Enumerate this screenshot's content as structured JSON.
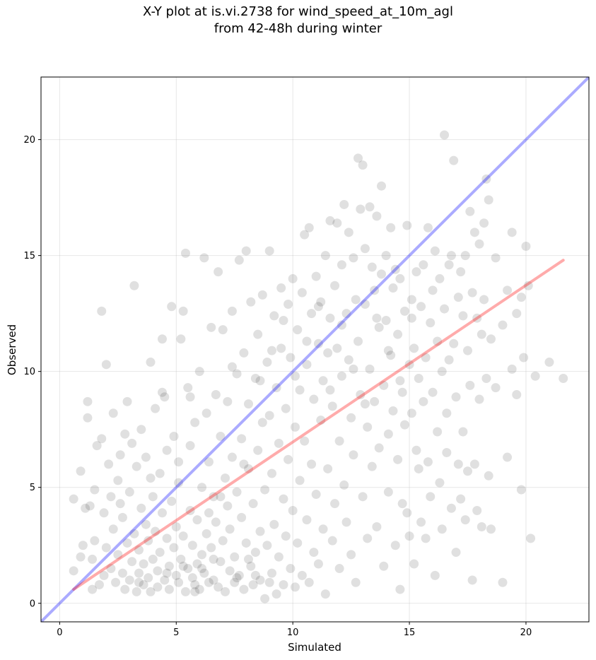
{
  "title": {
    "line1": "X-Y plot at is.vi.2738 for wind_speed_at_10m_agl",
    "line2": "from 42-48h during winter"
  },
  "chart_data": {
    "type": "scatter",
    "xlabel": "Simulated",
    "ylabel": "Observed",
    "xlim": [
      -0.8,
      22.7
    ],
    "ylim": [
      -0.8,
      22.7
    ],
    "xticks": [
      0,
      5,
      10,
      15,
      20
    ],
    "yticks": [
      0,
      5,
      10,
      15,
      20
    ],
    "grid": true,
    "point_color": "#000000",
    "point_opacity": 0.12,
    "lines": [
      {
        "label": "1:1 line",
        "color": "#0000ff",
        "x": [
          -0.8,
          22.7
        ],
        "y": [
          -0.8,
          22.7
        ]
      },
      {
        "label": "regression fit",
        "color": "#ff0000",
        "x": [
          0.6,
          21.6
        ],
        "y": [
          0.6,
          14.8
        ]
      }
    ],
    "points": [
      [
        0.6,
        4.5
      ],
      [
        0.6,
        1.4
      ],
      [
        0.9,
        2.0
      ],
      [
        0.9,
        5.7
      ],
      [
        1.0,
        2.5
      ],
      [
        1.1,
        4.1
      ],
      [
        1.2,
        8.0
      ],
      [
        1.2,
        8.7
      ],
      [
        1.3,
        4.2
      ],
      [
        1.4,
        0.6
      ],
      [
        1.4,
        1.9
      ],
      [
        1.5,
        4.9
      ],
      [
        1.5,
        2.7
      ],
      [
        1.6,
        6.8
      ],
      [
        1.7,
        0.8
      ],
      [
        1.8,
        12.6
      ],
      [
        1.8,
        7.1
      ],
      [
        1.9,
        3.9
      ],
      [
        1.9,
        1.2
      ],
      [
        2.0,
        10.3
      ],
      [
        2.0,
        2.4
      ],
      [
        2.1,
        6.0
      ],
      [
        2.2,
        4.6
      ],
      [
        2.2,
        1.5
      ],
      [
        2.3,
        8.2
      ],
      [
        2.3,
        3.2
      ],
      [
        2.4,
        0.9
      ],
      [
        2.5,
        5.3
      ],
      [
        2.5,
        2.1
      ],
      [
        2.6,
        6.4
      ],
      [
        2.7,
        1.3
      ],
      [
        2.7,
        3.7
      ],
      [
        2.8,
        7.3
      ],
      [
        2.8,
        0.6
      ],
      [
        2.9,
        8.7
      ],
      [
        2.9,
        2.6
      ],
      [
        3.0,
        4.8
      ],
      [
        3.0,
        1.0
      ],
      [
        3.1,
        6.9
      ],
      [
        3.1,
        1.8
      ],
      [
        3.2,
        13.7
      ],
      [
        3.2,
        3.0
      ],
      [
        3.3,
        0.5
      ],
      [
        3.3,
        5.9
      ],
      [
        3.4,
        1.3
      ],
      [
        3.4,
        2.3
      ],
      [
        3.5,
        7.5
      ],
      [
        3.5,
        4.1
      ],
      [
        3.6,
        0.8
      ],
      [
        3.6,
        1.7
      ],
      [
        3.7,
        3.4
      ],
      [
        3.7,
        6.3
      ],
      [
        3.8,
        1.1
      ],
      [
        3.8,
        2.7
      ],
      [
        3.9,
        10.4
      ],
      [
        3.9,
        0.5
      ],
      [
        4.0,
        4.6
      ],
      [
        4.0,
        1.9
      ],
      [
        4.1,
        8.4
      ],
      [
        4.1,
        3.1
      ],
      [
        4.2,
        1.4
      ],
      [
        4.2,
        0.7
      ],
      [
        4.3,
        5.6
      ],
      [
        4.3,
        2.2
      ],
      [
        4.4,
        11.4
      ],
      [
        4.4,
        3.9
      ],
      [
        4.5,
        8.9
      ],
      [
        4.5,
        1.0
      ],
      [
        4.6,
        6.6
      ],
      [
        4.6,
        2.8
      ],
      [
        4.7,
        0.6
      ],
      [
        4.7,
        1.6
      ],
      [
        4.8,
        12.8
      ],
      [
        4.8,
        4.4
      ],
      [
        4.9,
        7.2
      ],
      [
        4.9,
        2.4
      ],
      [
        5.0,
        1.2
      ],
      [
        5.0,
        3.3
      ],
      [
        5.1,
        0.9
      ],
      [
        5.1,
        5.2
      ],
      [
        5.2,
        11.4
      ],
      [
        5.2,
        1.9
      ],
      [
        5.3,
        12.6
      ],
      [
        5.3,
        2.9
      ],
      [
        5.4,
        15.1
      ],
      [
        5.4,
        0.5
      ],
      [
        5.5,
        9.3
      ],
      [
        5.5,
        1.5
      ],
      [
        5.6,
        4.0
      ],
      [
        5.6,
        6.8
      ],
      [
        5.7,
        1.1
      ],
      [
        5.7,
        2.5
      ],
      [
        5.8,
        0.8
      ],
      [
        5.8,
        7.8
      ],
      [
        5.9,
        3.6
      ],
      [
        5.9,
        1.7
      ],
      [
        6.0,
        10.0
      ],
      [
        6.0,
        0.6
      ],
      [
        6.1,
        5.0
      ],
      [
        6.1,
        2.1
      ],
      [
        6.2,
        14.9
      ],
      [
        6.2,
        1.3
      ],
      [
        6.3,
        8.2
      ],
      [
        6.3,
        3.0
      ],
      [
        6.4,
        0.9
      ],
      [
        6.4,
        6.1
      ],
      [
        6.5,
        11.9
      ],
      [
        6.5,
        2.4
      ],
      [
        6.6,
        4.6
      ],
      [
        6.6,
        1.0
      ],
      [
        6.7,
        9.0
      ],
      [
        6.7,
        3.5
      ],
      [
        6.8,
        14.3
      ],
      [
        6.8,
        0.7
      ],
      [
        6.9,
        7.2
      ],
      [
        6.9,
        1.8
      ],
      [
        7.0,
        11.8
      ],
      [
        7.0,
        2.7
      ],
      [
        7.1,
        5.4
      ],
      [
        7.1,
        0.5
      ],
      [
        7.2,
        8.7
      ],
      [
        7.2,
        4.2
      ],
      [
        7.3,
        1.4
      ],
      [
        7.3,
        3.2
      ],
      [
        7.4,
        12.6
      ],
      [
        7.4,
        6.3
      ],
      [
        7.5,
        0.9
      ],
      [
        7.5,
        2.0
      ],
      [
        7.6,
        9.9
      ],
      [
        7.6,
        4.8
      ],
      [
        7.7,
        14.8
      ],
      [
        7.7,
        1.2
      ],
      [
        7.8,
        7.1
      ],
      [
        7.8,
        3.7
      ],
      [
        7.9,
        10.8
      ],
      [
        7.9,
        0.6
      ],
      [
        8.0,
        15.2
      ],
      [
        8.0,
        2.6
      ],
      [
        8.1,
        5.8
      ],
      [
        8.1,
        8.6
      ],
      [
        8.2,
        1.6
      ],
      [
        8.2,
        13.0
      ],
      [
        8.3,
        4.3
      ],
      [
        8.3,
        0.8
      ],
      [
        8.4,
        9.7
      ],
      [
        8.4,
        2.2
      ],
      [
        8.5,
        11.6
      ],
      [
        8.5,
        6.6
      ],
      [
        8.6,
        3.1
      ],
      [
        8.6,
        1.0
      ],
      [
        8.7,
        13.3
      ],
      [
        8.7,
        7.8
      ],
      [
        8.8,
        0.2
      ],
      [
        8.8,
        4.9
      ],
      [
        8.9,
        10.4
      ],
      [
        8.9,
        2.5
      ],
      [
        9.0,
        15.2
      ],
      [
        9.0,
        8.1
      ],
      [
        9.1,
        1.3
      ],
      [
        9.1,
        5.6
      ],
      [
        9.2,
        12.4
      ],
      [
        9.2,
        3.4
      ],
      [
        9.3,
        0.4
      ],
      [
        9.3,
        9.3
      ],
      [
        9.4,
        6.9
      ],
      [
        9.4,
        2.0
      ],
      [
        9.5,
        13.6
      ],
      [
        9.5,
        11.0
      ],
      [
        9.6,
        4.5
      ],
      [
        9.6,
        0.8
      ],
      [
        9.7,
        8.4
      ],
      [
        9.7,
        2.9
      ],
      [
        9.8,
        12.9
      ],
      [
        9.8,
        6.2
      ],
      [
        9.9,
        10.6
      ],
      [
        9.9,
        1.5
      ],
      [
        10.0,
        14.0
      ],
      [
        10.0,
        4.0
      ],
      [
        10.1,
        7.6
      ],
      [
        10.1,
        0.7
      ],
      [
        10.2,
        11.8
      ],
      [
        10.2,
        2.6
      ],
      [
        10.3,
        9.2
      ],
      [
        10.3,
        5.3
      ],
      [
        10.4,
        13.4
      ],
      [
        10.4,
        1.2
      ],
      [
        10.5,
        15.9
      ],
      [
        10.5,
        7.0
      ],
      [
        10.6,
        10.3
      ],
      [
        10.6,
        3.6
      ],
      [
        10.7,
        16.2
      ],
      [
        10.7,
        0.9
      ],
      [
        10.8,
        12.5
      ],
      [
        10.8,
        6.0
      ],
      [
        10.9,
        8.8
      ],
      [
        10.9,
        2.2
      ],
      [
        11.0,
        14.1
      ],
      [
        11.0,
        4.7
      ],
      [
        11.1,
        11.2
      ],
      [
        11.1,
        1.7
      ],
      [
        11.2,
        13.0
      ],
      [
        11.2,
        7.9
      ],
      [
        11.3,
        9.6
      ],
      [
        11.3,
        3.2
      ],
      [
        11.4,
        15.0
      ],
      [
        11.4,
        0.4
      ],
      [
        11.5,
        10.8
      ],
      [
        11.5,
        5.8
      ],
      [
        11.6,
        16.5
      ],
      [
        11.6,
        12.3
      ],
      [
        11.7,
        8.5
      ],
      [
        11.7,
        2.7
      ],
      [
        11.8,
        13.7
      ],
      [
        11.8,
        4.3
      ],
      [
        11.9,
        16.4
      ],
      [
        11.9,
        11.0
      ],
      [
        12.0,
        7.0
      ],
      [
        12.0,
        1.5
      ],
      [
        12.1,
        14.6
      ],
      [
        12.1,
        9.8
      ],
      [
        12.2,
        17.2
      ],
      [
        12.2,
        5.1
      ],
      [
        12.3,
        12.5
      ],
      [
        12.3,
        3.5
      ],
      [
        12.4,
        16.0
      ],
      [
        12.4,
        10.5
      ],
      [
        12.5,
        8.0
      ],
      [
        12.5,
        2.1
      ],
      [
        12.6,
        14.9
      ],
      [
        12.6,
        6.4
      ],
      [
        12.7,
        13.1
      ],
      [
        12.7,
        0.9
      ],
      [
        12.8,
        19.2
      ],
      [
        12.8,
        11.3
      ],
      [
        12.9,
        17.0
      ],
      [
        12.9,
        9.0
      ],
      [
        13.0,
        18.9
      ],
      [
        13.0,
        4.6
      ],
      [
        13.1,
        15.3
      ],
      [
        13.1,
        12.9
      ],
      [
        13.2,
        7.6
      ],
      [
        13.2,
        2.8
      ],
      [
        13.3,
        17.1
      ],
      [
        13.3,
        10.1
      ],
      [
        13.4,
        14.5
      ],
      [
        13.4,
        5.9
      ],
      [
        13.5,
        13.5
      ],
      [
        13.5,
        8.7
      ],
      [
        13.6,
        16.7
      ],
      [
        13.6,
        3.3
      ],
      [
        13.7,
        11.9
      ],
      [
        13.7,
        6.7
      ],
      [
        13.8,
        18.0
      ],
      [
        13.8,
        14.2
      ],
      [
        13.9,
        9.4
      ],
      [
        13.9,
        1.6
      ],
      [
        14.0,
        15.0
      ],
      [
        14.0,
        12.2
      ],
      [
        14.1,
        7.3
      ],
      [
        14.1,
        4.8
      ],
      [
        14.2,
        16.2
      ],
      [
        14.2,
        10.7
      ],
      [
        14.3,
        13.6
      ],
      [
        14.3,
        8.3
      ],
      [
        14.4,
        14.4
      ],
      [
        14.4,
        2.5
      ],
      [
        14.5,
        11.6
      ],
      [
        14.5,
        6.2
      ],
      [
        14.6,
        14.0
      ],
      [
        14.6,
        0.6
      ],
      [
        14.7,
        9.1
      ],
      [
        14.7,
        4.3
      ],
      [
        14.8,
        12.6
      ],
      [
        14.8,
        7.7
      ],
      [
        14.9,
        16.3
      ],
      [
        14.9,
        3.9
      ],
      [
        15.0,
        10.3
      ],
      [
        15.0,
        2.9
      ],
      [
        15.1,
        13.1
      ],
      [
        15.1,
        8.2
      ],
      [
        15.2,
        11.0
      ],
      [
        15.2,
        1.7
      ],
      [
        15.3,
        14.3
      ],
      [
        15.3,
        6.6
      ],
      [
        15.4,
        9.7
      ],
      [
        15.4,
        5.8
      ],
      [
        15.5,
        12.8
      ],
      [
        15.5,
        3.5
      ],
      [
        15.6,
        14.6
      ],
      [
        15.6,
        8.7
      ],
      [
        15.7,
        10.6
      ],
      [
        15.7,
        2.8
      ],
      [
        15.8,
        16.2
      ],
      [
        15.8,
        6.1
      ],
      [
        15.9,
        12.1
      ],
      [
        15.9,
        4.6
      ],
      [
        16.0,
        13.5
      ],
      [
        16.0,
        9.1
      ],
      [
        16.1,
        15.2
      ],
      [
        16.1,
        1.2
      ],
      [
        16.2,
        11.3
      ],
      [
        16.2,
        7.4
      ],
      [
        16.3,
        14.0
      ],
      [
        16.3,
        5.2
      ],
      [
        16.4,
        10.0
      ],
      [
        16.4,
        3.2
      ],
      [
        16.5,
        20.2
      ],
      [
        16.5,
        12.7
      ],
      [
        16.6,
        8.2
      ],
      [
        16.6,
        6.5
      ],
      [
        16.7,
        14.6
      ],
      [
        16.7,
        10.5
      ],
      [
        16.8,
        15.0
      ],
      [
        16.8,
        4.1
      ],
      [
        16.9,
        19.1
      ],
      [
        16.9,
        11.2
      ],
      [
        17.0,
        8.9
      ],
      [
        17.0,
        2.2
      ],
      [
        17.1,
        13.2
      ],
      [
        17.1,
        6.0
      ],
      [
        17.2,
        14.3
      ],
      [
        17.2,
        4.5
      ],
      [
        17.3,
        12.4
      ],
      [
        17.3,
        7.4
      ],
      [
        17.4,
        15.0
      ],
      [
        17.4,
        3.6
      ],
      [
        17.5,
        10.9
      ],
      [
        17.5,
        5.7
      ],
      [
        17.6,
        16.9
      ],
      [
        17.6,
        9.4
      ],
      [
        17.7,
        13.4
      ],
      [
        17.7,
        1.0
      ],
      [
        17.8,
        16.0
      ],
      [
        17.8,
        6.0
      ],
      [
        17.9,
        12.3
      ],
      [
        17.9,
        4.0
      ],
      [
        18.0,
        15.5
      ],
      [
        18.0,
        8.8
      ],
      [
        18.1,
        11.6
      ],
      [
        18.1,
        3.3
      ],
      [
        18.2,
        16.4
      ],
      [
        18.2,
        13.1
      ],
      [
        18.3,
        18.3
      ],
      [
        18.3,
        9.7
      ],
      [
        18.4,
        17.4
      ],
      [
        18.4,
        5.5
      ],
      [
        18.5,
        11.4
      ],
      [
        18.5,
        3.2
      ],
      [
        18.7,
        14.9
      ],
      [
        18.7,
        9.3
      ],
      [
        19.0,
        12.0
      ],
      [
        19.0,
        0.9
      ],
      [
        19.2,
        13.5
      ],
      [
        19.2,
        6.3
      ],
      [
        19.4,
        16.0
      ],
      [
        19.4,
        10.1
      ],
      [
        19.6,
        12.5
      ],
      [
        19.6,
        9.0
      ],
      [
        19.8,
        13.2
      ],
      [
        19.8,
        4.9
      ],
      [
        19.9,
        10.6
      ],
      [
        20.0,
        15.4
      ],
      [
        20.1,
        13.7
      ],
      [
        20.2,
        2.8
      ],
      [
        20.4,
        9.8
      ],
      [
        21.0,
        10.4
      ],
      [
        21.6,
        9.7
      ],
      [
        2.6,
        4.3
      ],
      [
        3.9,
        5.4
      ],
      [
        4.4,
        9.1
      ],
      [
        5.1,
        6.1
      ],
      [
        5.6,
        8.9
      ],
      [
        6.4,
        3.9
      ],
      [
        6.9,
        4.6
      ],
      [
        7.4,
        10.2
      ],
      [
        7.9,
        6.0
      ],
      [
        8.6,
        9.6
      ],
      [
        9.1,
        10.9
      ],
      [
        9.6,
        12.2
      ],
      [
        10.1,
        9.8
      ],
      [
        10.6,
        11.3
      ],
      [
        11.1,
        12.8
      ],
      [
        11.6,
        9.2
      ],
      [
        12.1,
        12.0
      ],
      [
        12.6,
        10.1
      ],
      [
        13.1,
        8.6
      ],
      [
        13.6,
        12.3
      ],
      [
        14.1,
        10.9
      ],
      [
        14.6,
        9.6
      ],
      [
        15.1,
        12.3
      ],
      [
        3.4,
        0.9
      ],
      [
        4.6,
        1.3
      ],
      [
        5.3,
        1.6
      ],
      [
        5.8,
        0.5
      ],
      [
        6.1,
        1.5
      ],
      [
        6.6,
        1.9
      ],
      [
        7.6,
        1.1
      ],
      [
        8.1,
        1.9
      ],
      [
        8.4,
        1.2
      ],
      [
        9.0,
        0.9
      ]
    ]
  }
}
